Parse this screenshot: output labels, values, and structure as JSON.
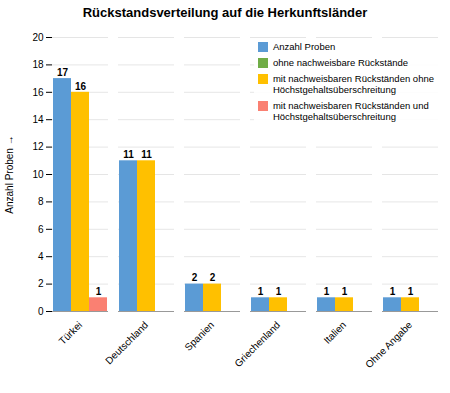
{
  "chart_data": {
    "type": "bar",
    "title": "Rückstandsverteilung auf die Herkunftsländer",
    "ylabel": "Anzahl Proben",
    "categories": [
      "Türkei",
      "Deutschland",
      "Spanien",
      "Griechenland",
      "Italien",
      "Ohne Angabe"
    ],
    "series": [
      {
        "name": "Anzahl Proben",
        "color": "#5B9BD5",
        "values": [
          17,
          11,
          2,
          1,
          1,
          1
        ]
      },
      {
        "name": "ohne nachweisbare Rückstände",
        "color": "#70AD47",
        "values": [
          null,
          null,
          null,
          null,
          null,
          null
        ]
      },
      {
        "name": "mit nachweisbaren Rückständen ohne\nHöchstgehaltsüberschreitung",
        "color": "#FFC000",
        "values": [
          16,
          11,
          2,
          1,
          1,
          1
        ]
      },
      {
        "name": "mit nachweisbaren Rückständen und\nHöchstgehaltsüberschreitung",
        "color": "#FA8072",
        "values": [
          1,
          null,
          null,
          null,
          null,
          null
        ]
      }
    ],
    "ylim": [
      0,
      20
    ],
    "yticks": [
      0,
      2,
      4,
      6,
      8,
      10,
      12,
      14,
      16,
      18,
      20
    ],
    "grid": true,
    "legend": "upper right",
    "data_labels": true
  }
}
